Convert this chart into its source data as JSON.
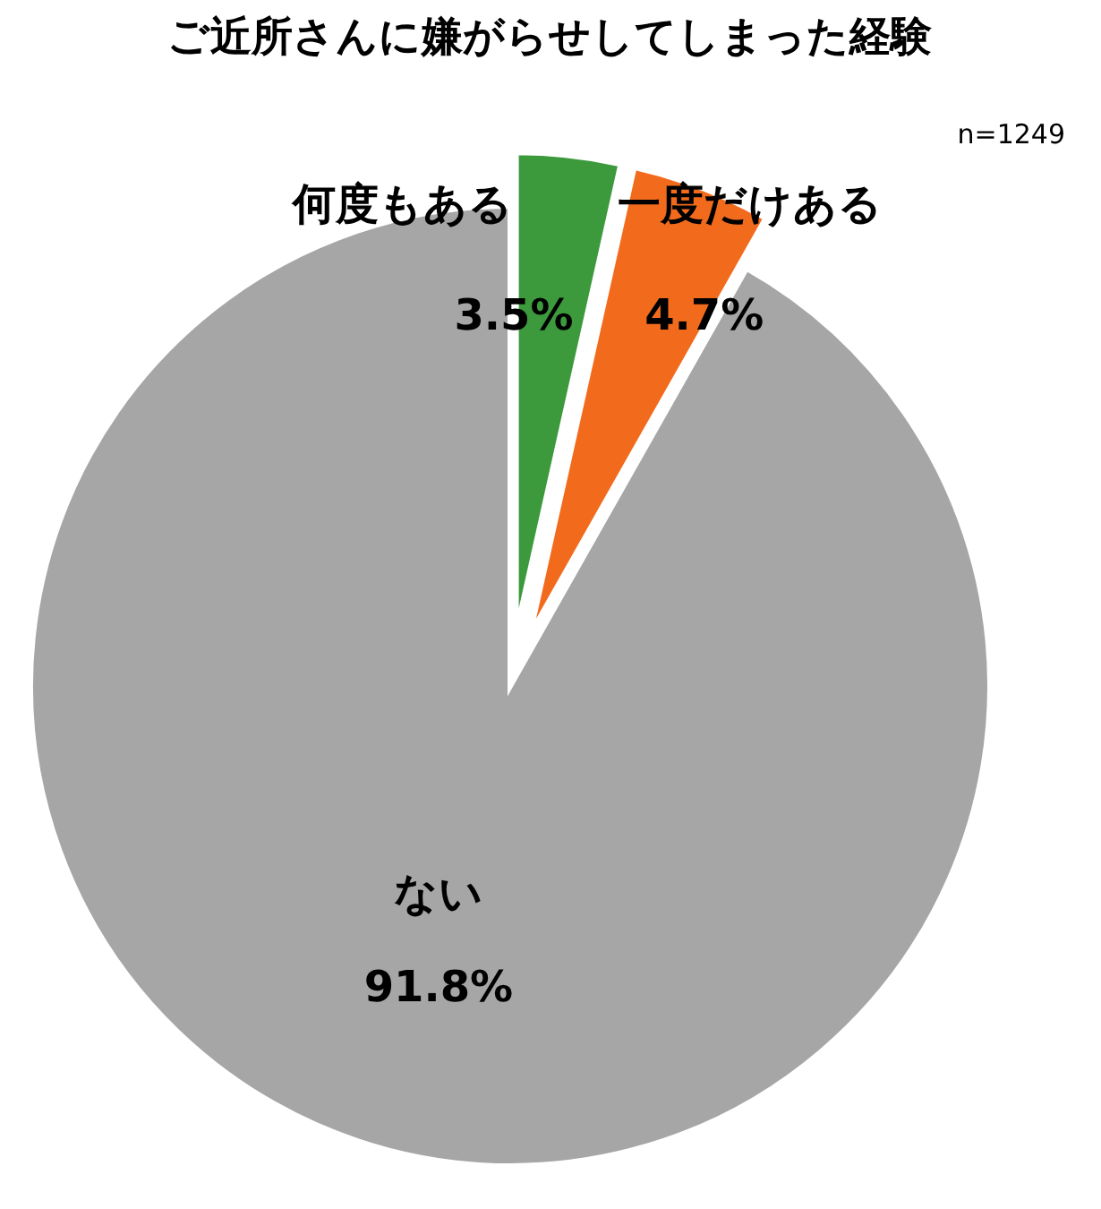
{
  "chart_data": {
    "type": "pie",
    "title": "ご近所さんに嫌がらせしてしまった経験",
    "annotations": [
      "n=1249"
    ],
    "categories": [
      "何度もある",
      "一度だけある",
      "ない"
    ],
    "values": [
      3.5,
      4.7,
      91.8
    ],
    "colors": [
      "#3c9a3c",
      "#f26b1d",
      "#a6a6a6"
    ],
    "value_labels": [
      "3.5%",
      "4.7%",
      "91.8%"
    ]
  }
}
